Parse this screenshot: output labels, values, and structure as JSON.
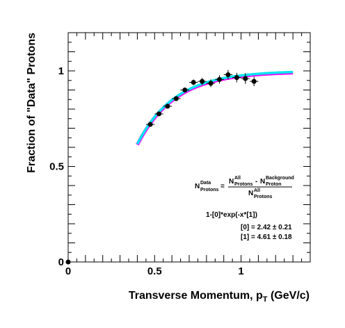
{
  "chart_data": {
    "type": "scatter",
    "xlabel": "Transverse Momentum, p",
    "xlabel_subscript": "T",
    "xlabel_unit": " (GeV/c)",
    "ylabel": "Fraction of \"Data\" Protons",
    "xlim": [
      0,
      1.4
    ],
    "ylim": [
      0,
      1.2
    ],
    "x_ticks": [
      {
        "value": 0,
        "label": "0"
      },
      {
        "value": 0.5,
        "label": "0.5"
      },
      {
        "value": 1,
        "label": "1"
      }
    ],
    "y_ticks": [
      {
        "value": 0,
        "label": "0"
      },
      {
        "value": 0.5,
        "label": "0.5"
      },
      {
        "value": 1,
        "label": "1"
      }
    ],
    "grid": false,
    "series": [
      {
        "points": [
          {
            "x": 0.475,
            "y": 0.72,
            "err": 0.01
          },
          {
            "x": 0.525,
            "y": 0.775,
            "err": 0.01
          },
          {
            "x": 0.575,
            "y": 0.815,
            "err": 0.012
          },
          {
            "x": 0.625,
            "y": 0.855,
            "err": 0.012
          },
          {
            "x": 0.675,
            "y": 0.9,
            "err": 0.013
          },
          {
            "x": 0.725,
            "y": 0.94,
            "err": 0.015
          },
          {
            "x": 0.775,
            "y": 0.945,
            "err": 0.018
          },
          {
            "x": 0.825,
            "y": 0.935,
            "err": 0.02
          },
          {
            "x": 0.875,
            "y": 0.955,
            "err": 0.022
          },
          {
            "x": 0.925,
            "y": 0.98,
            "err": 0.025
          },
          {
            "x": 0.975,
            "y": 0.965,
            "err": 0.025
          },
          {
            "x": 1.025,
            "y": 0.96,
            "err": 0.028
          },
          {
            "x": 1.075,
            "y": 0.945,
            "err": 0.025
          }
        ]
      }
    ],
    "fit": {
      "function": "1-[0]*exp(-x*[1])",
      "p0": 2.42,
      "p1": 4.61,
      "x_range": [
        0.4,
        1.3
      ],
      "colors": [
        "#ff00ff",
        "#00e5ee"
      ]
    },
    "formula": {
      "lhs_main": "N",
      "lhs_sup": "Data",
      "lhs_sub": "Protons",
      "eq": "=",
      "num1_main": "N",
      "num1_sup": "All",
      "num1_sub": "Protons",
      "minus": "-",
      "num2_main": "N",
      "num2_sup": "Background",
      "num2_sub": "Proton",
      "den_main": "N",
      "den_sup": "All",
      "den_sub": "Protons"
    },
    "fit_label": "1-[0]*exp(-x*[1])",
    "params": [
      {
        "name": "[0] = 2.42",
        "pm": "±",
        "err": "0.21"
      },
      {
        "name": "[1] = 4.61",
        "pm": "±",
        "err": "0.18"
      }
    ],
    "colors": {
      "points": "#000000",
      "fit_outer": "#ff00ff",
      "fit_inner": "#00e5ee"
    }
  }
}
